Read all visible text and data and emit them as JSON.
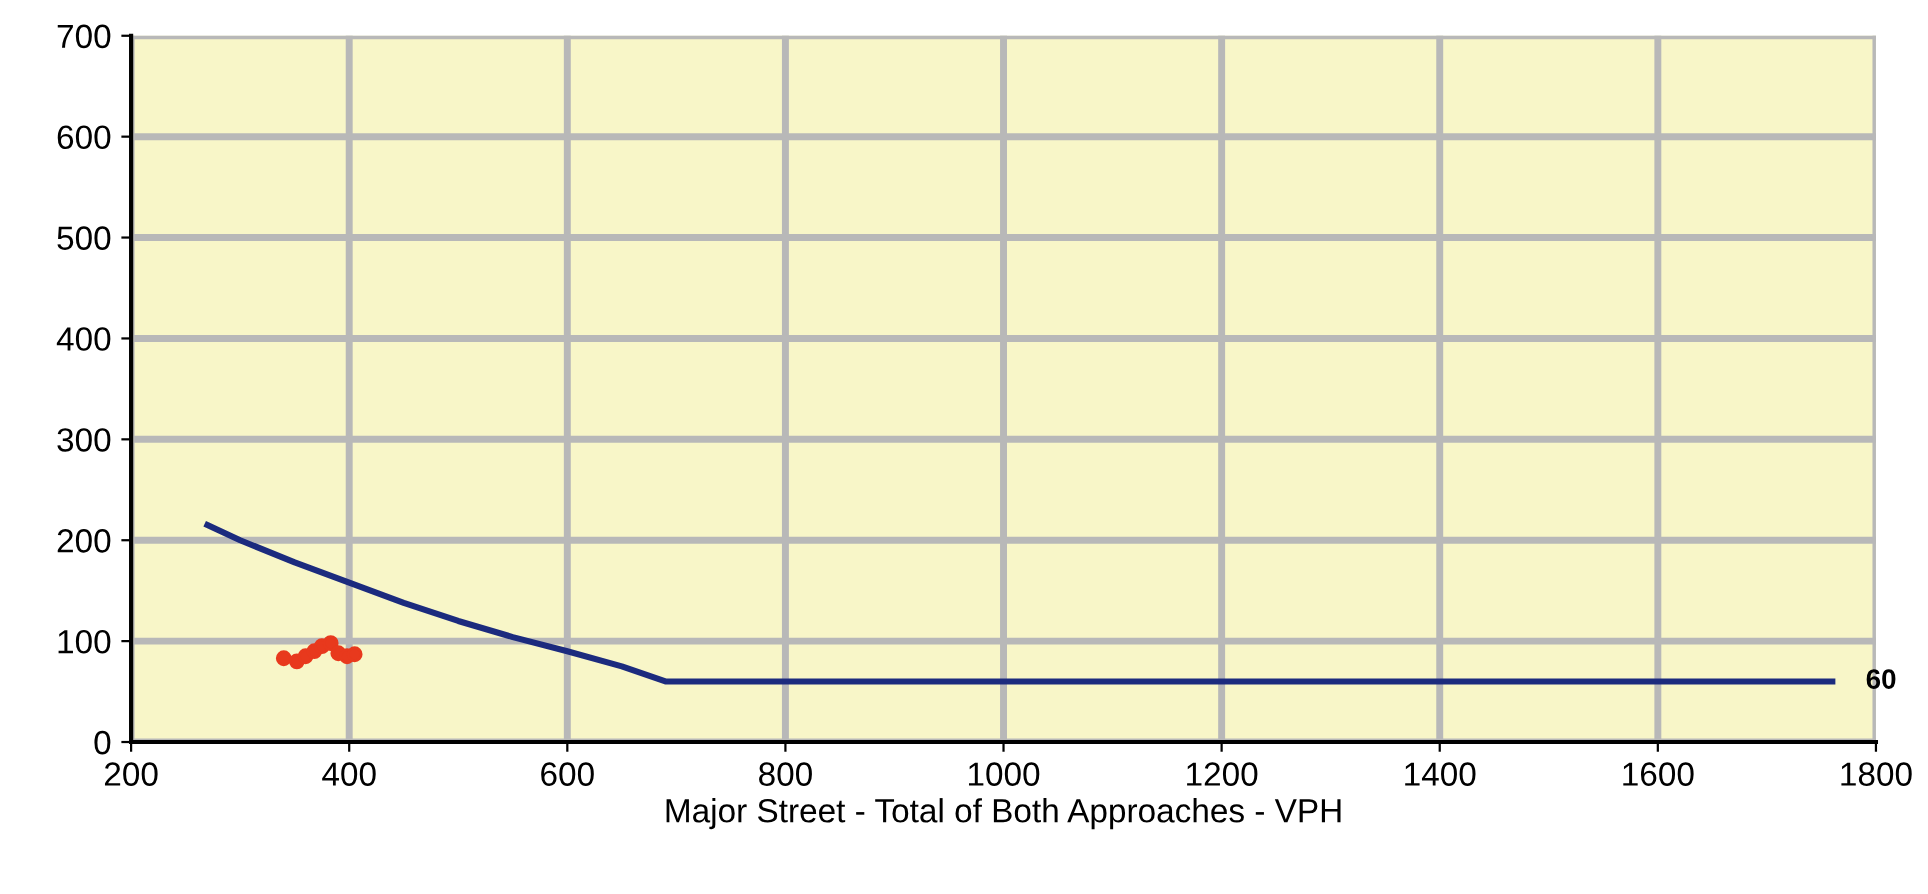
{
  "chart_data": {
    "type": "line",
    "xlabel": "Major Street - Total of Both Approaches - VPH",
    "xlim": [
      200,
      1800
    ],
    "xticks": [
      200,
      400,
      600,
      800,
      1000,
      1200,
      1400,
      1600,
      1800
    ],
    "ylim": [
      0,
      700
    ],
    "yticks": [
      0,
      100,
      200,
      300,
      400,
      500,
      600,
      700
    ],
    "grid": true,
    "series": [
      {
        "color": "#1c2b7e",
        "marker": "none",
        "line_style": "solid",
        "x": [
          270,
          300,
          350,
          400,
          450,
          500,
          550,
          600,
          650,
          690,
          1760
        ],
        "values": [
          215,
          200,
          178,
          158,
          138,
          120,
          104,
          90,
          75,
          60,
          60
        ]
      },
      {
        "type": "scatter",
        "color": "#e8391d",
        "marker": "circle",
        "x": [
          340,
          352,
          360,
          368,
          375,
          383,
          390,
          398,
          405
        ],
        "values": [
          83,
          80,
          85,
          90,
          95,
          98,
          88,
          85,
          87
        ]
      }
    ],
    "annotations": [
      {
        "text": "60",
        "x": 1760,
        "y": 60
      }
    ]
  }
}
